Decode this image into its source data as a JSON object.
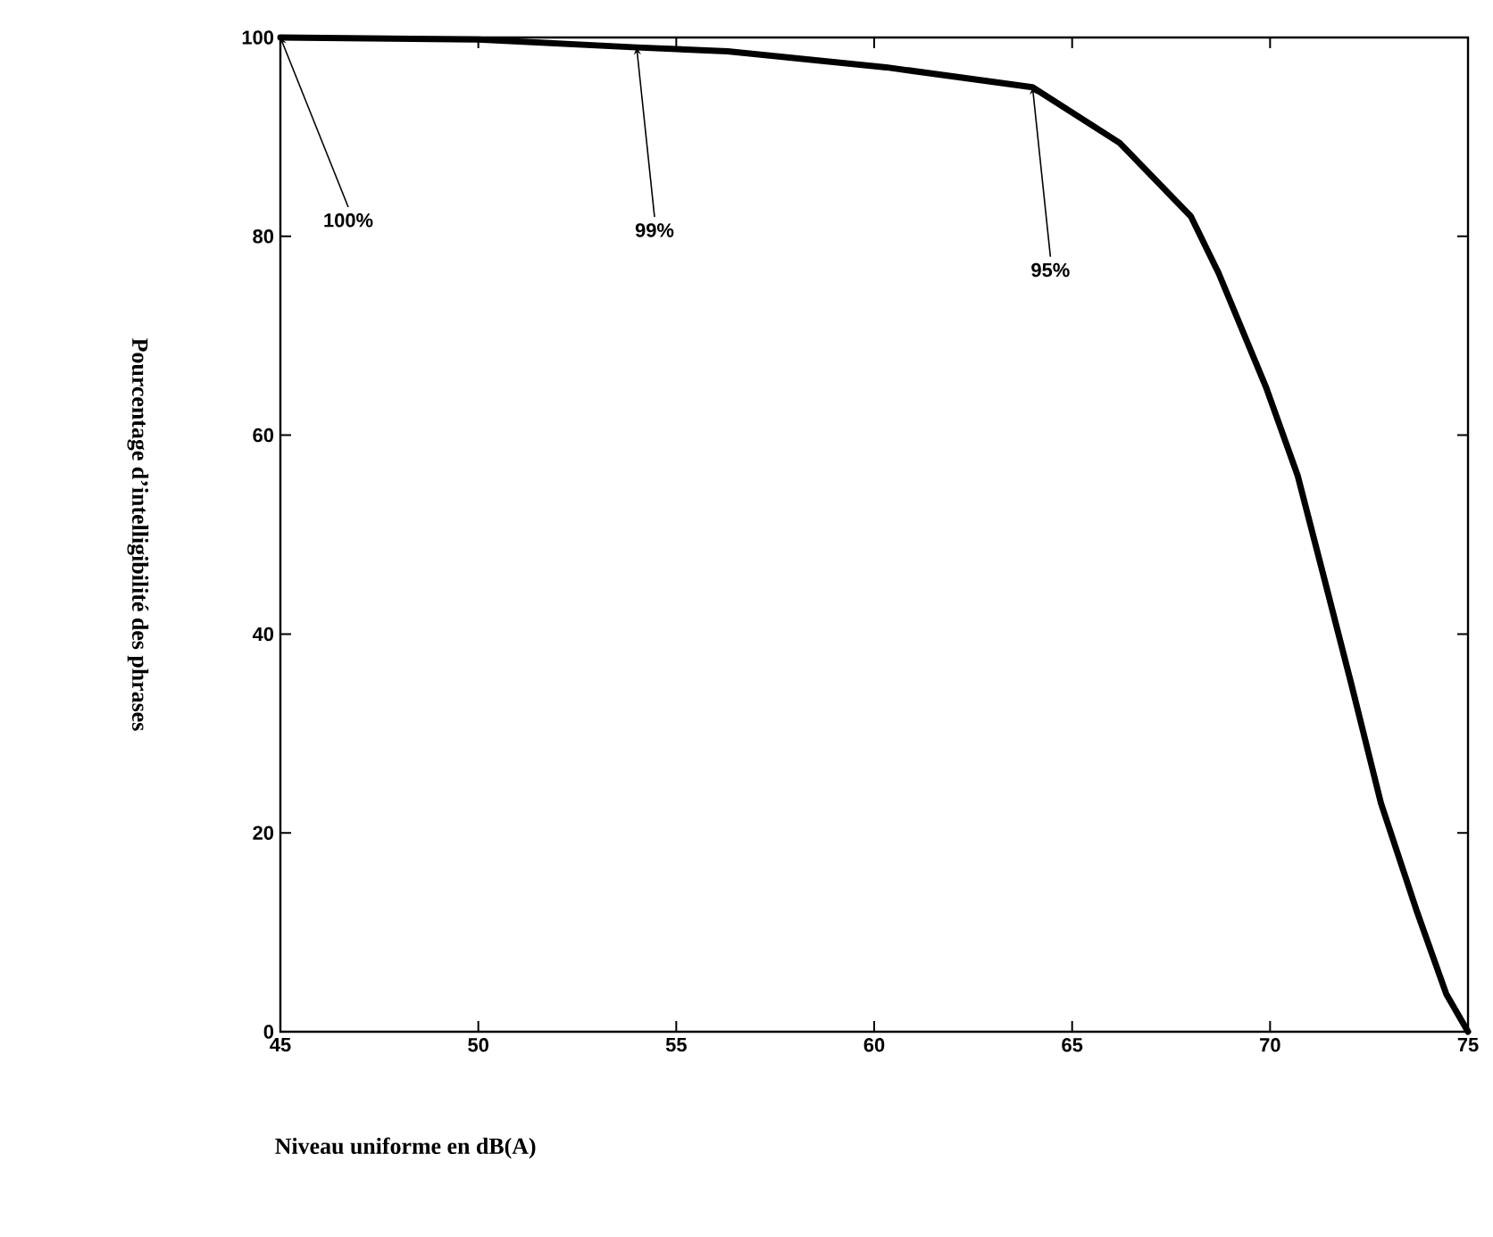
{
  "chart_data": {
    "type": "line",
    "xlabel": "Niveau uniforme en dB(A)",
    "ylabel": "Pourcentage d’intelligibilité des phrases",
    "x": [
      45,
      50,
      54,
      56.3,
      60.3,
      64,
      66.2,
      68,
      68.7,
      69.9,
      70.7,
      71.4,
      72.05,
      72.8,
      73.7,
      74.45,
      75
    ],
    "series": [
      {
        "color": "#000000",
        "values": [
          100,
          99.8,
          99,
          98.6,
          97,
          95,
          89.4,
          82,
          76.3,
          64.8,
          55.9,
          45.1,
          35,
          23,
          12.2,
          3.8,
          0
        ]
      }
    ],
    "xlim": [
      45,
      75
    ],
    "ylim": [
      0,
      100
    ],
    "xticks": [
      45,
      50,
      55,
      60,
      65,
      70,
      75
    ],
    "yticks": [
      0,
      20,
      40,
      60,
      80,
      100
    ],
    "annotations": [
      {
        "text": "100%",
        "x": 45,
        "y": 100
      },
      {
        "text": "99%",
        "x": 54,
        "y": 99
      },
      {
        "text": "95%",
        "x": 64,
        "y": 95
      }
    ],
    "grid": false,
    "marker": "none",
    "line_style": "solid"
  }
}
